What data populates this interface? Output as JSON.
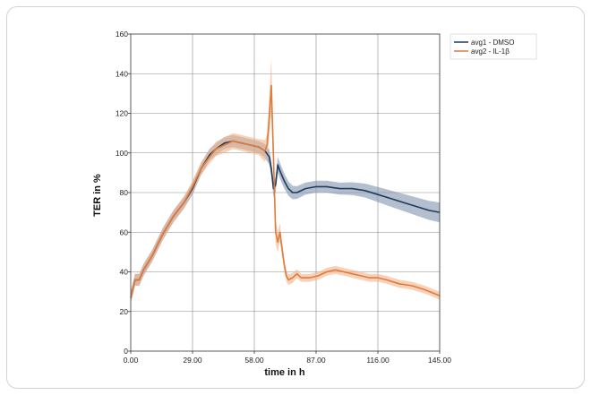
{
  "chart_data": {
    "type": "line",
    "xlabel": "time in h",
    "ylabel": "TER in %",
    "xlim": [
      0,
      145
    ],
    "ylim": [
      0,
      160
    ],
    "x_ticks": [
      "0.00",
      "29.00",
      "58.00",
      "87.00",
      "116.00",
      "145.00"
    ],
    "y_ticks": [
      "0",
      "20",
      "40",
      "60",
      "80",
      "100",
      "120",
      "140",
      "160"
    ],
    "grid": true,
    "legend_position": "top-right",
    "series": [
      {
        "name": "avg1 - DMSO",
        "color": "#1f3b5c",
        "band_color": "#8093ad",
        "points": [
          [
            0,
            27
          ],
          [
            2,
            36
          ],
          [
            4,
            36
          ],
          [
            6,
            41
          ],
          [
            10,
            48
          ],
          [
            15,
            59
          ],
          [
            20,
            68
          ],
          [
            25,
            75
          ],
          [
            29,
            82
          ],
          [
            33,
            92
          ],
          [
            37,
            99
          ],
          [
            40,
            102
          ],
          [
            44,
            105
          ],
          [
            48,
            106
          ],
          [
            52,
            105
          ],
          [
            56,
            104
          ],
          [
            60,
            103
          ],
          [
            63,
            101
          ],
          [
            65,
            98
          ],
          [
            66,
            92
          ],
          [
            67,
            82
          ],
          [
            68,
            84
          ],
          [
            69,
            94
          ],
          [
            70,
            91
          ],
          [
            72,
            86
          ],
          [
            74,
            82
          ],
          [
            76,
            80
          ],
          [
            78,
            80
          ],
          [
            82,
            82
          ],
          [
            87,
            83
          ],
          [
            92,
            83
          ],
          [
            98,
            82
          ],
          [
            104,
            82
          ],
          [
            110,
            81
          ],
          [
            116,
            79
          ],
          [
            122,
            77
          ],
          [
            128,
            75
          ],
          [
            134,
            73
          ],
          [
            140,
            71
          ],
          [
            145,
            70
          ]
        ],
        "band": [
          [
            0,
            3
          ],
          [
            30,
            3
          ],
          [
            45,
            3
          ],
          [
            60,
            3
          ],
          [
            66,
            4
          ],
          [
            70,
            4
          ],
          [
            80,
            3
          ],
          [
            100,
            3
          ],
          [
            120,
            4
          ],
          [
            145,
            5
          ]
        ]
      },
      {
        "name": "avg2 - IL-1β",
        "color": "#e07b3c",
        "band_color": "#f2b48a",
        "points": [
          [
            0,
            27
          ],
          [
            2,
            36
          ],
          [
            4,
            36
          ],
          [
            6,
            41
          ],
          [
            10,
            48
          ],
          [
            15,
            59
          ],
          [
            20,
            68
          ],
          [
            25,
            75
          ],
          [
            29,
            83
          ],
          [
            33,
            92
          ],
          [
            37,
            98
          ],
          [
            40,
            102
          ],
          [
            44,
            104
          ],
          [
            48,
            106
          ],
          [
            52,
            105
          ],
          [
            56,
            104
          ],
          [
            60,
            103
          ],
          [
            63,
            101
          ],
          [
            64,
            104
          ],
          [
            65,
            118
          ],
          [
            66,
            134
          ],
          [
            67,
            98
          ],
          [
            68,
            60
          ],
          [
            69,
            55
          ],
          [
            70,
            60
          ],
          [
            71,
            52
          ],
          [
            72,
            44
          ],
          [
            73,
            38
          ],
          [
            74,
            36
          ],
          [
            76,
            37
          ],
          [
            78,
            39
          ],
          [
            80,
            37
          ],
          [
            84,
            37
          ],
          [
            88,
            38
          ],
          [
            92,
            40
          ],
          [
            96,
            41
          ],
          [
            100,
            40
          ],
          [
            104,
            39
          ],
          [
            108,
            38
          ],
          [
            112,
            37
          ],
          [
            116,
            37
          ],
          [
            120,
            36
          ],
          [
            126,
            34
          ],
          [
            132,
            33
          ],
          [
            138,
            31
          ],
          [
            145,
            28
          ]
        ],
        "band": [
          [
            0,
            3
          ],
          [
            30,
            3
          ],
          [
            45,
            4
          ],
          [
            60,
            4
          ],
          [
            64,
            6
          ],
          [
            66,
            14
          ],
          [
            68,
            6
          ],
          [
            72,
            3
          ],
          [
            80,
            2
          ],
          [
            100,
            2
          ],
          [
            120,
            2
          ],
          [
            145,
            2
          ]
        ]
      }
    ]
  }
}
